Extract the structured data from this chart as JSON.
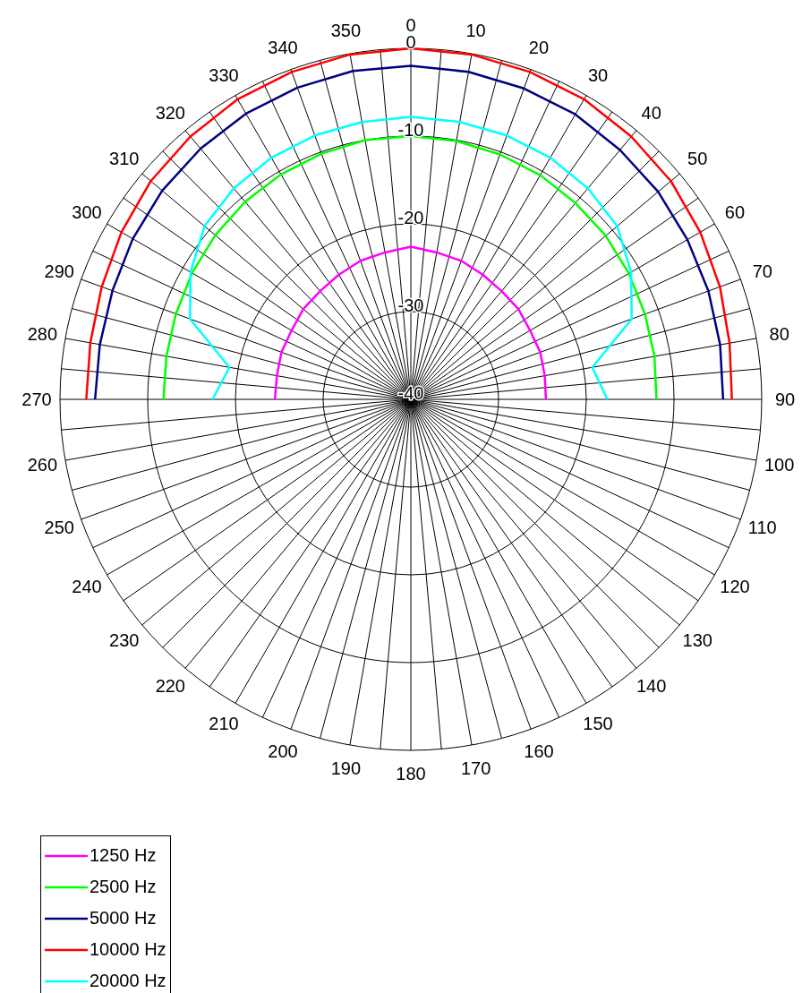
{
  "chart_data": {
    "type": "radar",
    "categories": [
      "0",
      "10",
      "20",
      "30",
      "40",
      "50",
      "60",
      "70",
      "80",
      "90",
      "100",
      "110",
      "120",
      "130",
      "140",
      "150",
      "160",
      "170",
      "180",
      "190",
      "200",
      "210",
      "220",
      "230",
      "240",
      "250",
      "260",
      "270",
      "280",
      "290",
      "300",
      "310",
      "320",
      "330",
      "340",
      "350"
    ],
    "series": [
      {
        "name": "1250 Hz",
        "color": "#ff00ff",
        "values": [
          -22.6,
          -23,
          -23.2,
          -23.6,
          -23.9,
          -24,
          -24.3,
          -24.3,
          -24.5,
          -24.6,
          null,
          null,
          null,
          null,
          null,
          null,
          null,
          null,
          null,
          null,
          null,
          null,
          null,
          null,
          null,
          null,
          null,
          -24.5,
          -24.5,
          -24.3,
          -24.3,
          -24,
          -23.9,
          -23.6,
          -23.2,
          -23
        ]
      },
      {
        "name": "2500 Hz",
        "color": "#00ff00",
        "values": [
          -10,
          -10.1,
          -10.3,
          -10.5,
          -10.8,
          -11,
          -11.3,
          -11.6,
          -11.8,
          -12,
          null,
          null,
          null,
          null,
          null,
          null,
          null,
          null,
          null,
          null,
          null,
          null,
          null,
          null,
          null,
          null,
          null,
          -11.8,
          -11.7,
          -11.5,
          -11.2,
          -10.9,
          -10.6,
          -10.4,
          -10.2,
          -10
        ]
      },
      {
        "name": "5000 Hz",
        "color": "#000080",
        "values": [
          -2,
          -2.1,
          -2.3,
          -2.5,
          -2.9,
          -3.2,
          -3.6,
          -3.9,
          -4.2,
          -4.4,
          null,
          null,
          null,
          null,
          null,
          null,
          null,
          null,
          null,
          null,
          null,
          null,
          null,
          null,
          null,
          null,
          null,
          -4,
          -4,
          -3.8,
          -3.4,
          -3,
          -2.7,
          -2.4,
          -2.2,
          -2
        ]
      },
      {
        "name": "10000 Hz",
        "color": "#ff0000",
        "values": [
          0,
          -0.1,
          -0.3,
          -0.5,
          -0.9,
          -1.3,
          -1.9,
          -2.5,
          -3.1,
          -3.4,
          null,
          null,
          null,
          null,
          null,
          null,
          null,
          null,
          null,
          null,
          null,
          null,
          null,
          null,
          null,
          null,
          null,
          -3,
          -2.9,
          -2.5,
          -1.9,
          -1.3,
          -0.9,
          -0.5,
          -0.3,
          -0.1
        ]
      },
      {
        "name": "20000 Hz",
        "color": "#00ffff",
        "values": [
          -7.8,
          -7.9,
          -8,
          -8.2,
          -8.6,
          -9.3,
          -11,
          -13.2,
          -19,
          -17.6,
          null,
          null,
          null,
          null,
          null,
          null,
          null,
          null,
          null,
          null,
          null,
          null,
          null,
          null,
          null,
          null,
          null,
          -17.4,
          -19,
          -13.2,
          -11,
          -9.3,
          -8.6,
          -8.2,
          -8,
          -7.9
        ]
      }
    ],
    "ylim": [
      -40,
      0
    ],
    "yticks": [
      -40,
      -30,
      -20,
      -10,
      0
    ],
    "grid": true,
    "legend": "bottom left"
  }
}
